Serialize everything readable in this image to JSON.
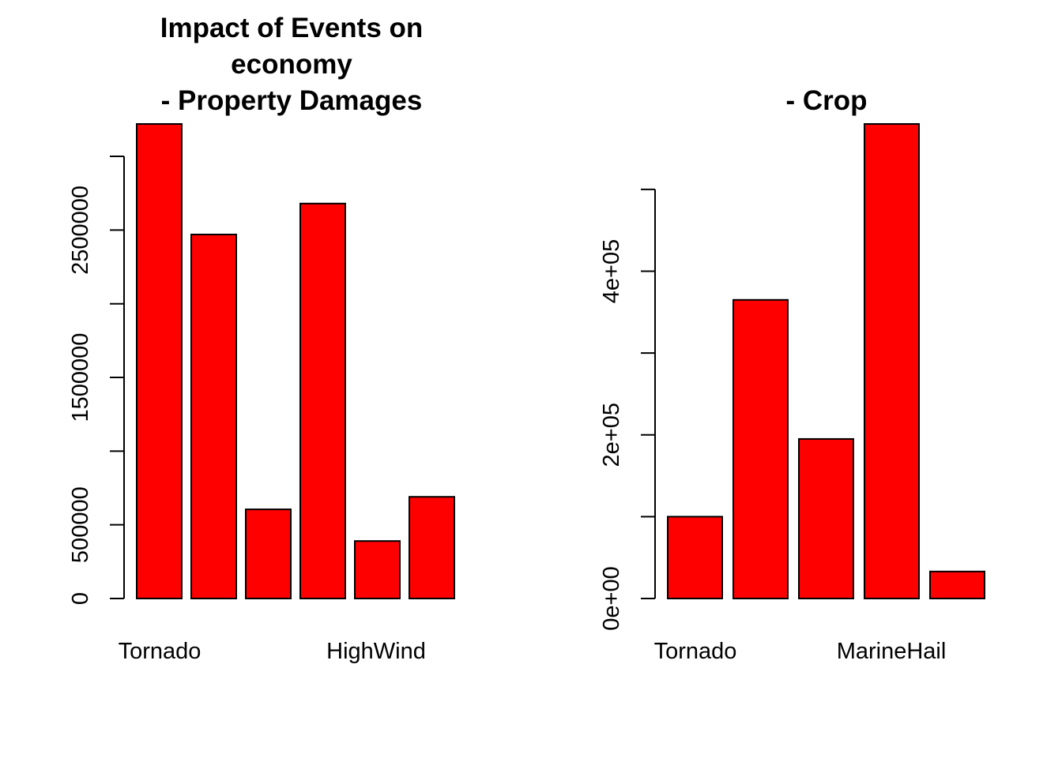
{
  "chart_data": [
    {
      "type": "bar",
      "title_lines": [
        "Impact of Events on",
        "economy",
        "- Property Damages"
      ],
      "categories": [
        "Tornado",
        "",
        "",
        "HighWind",
        "",
        ""
      ],
      "values": [
        3220000,
        2470000,
        605000,
        2680000,
        390000,
        690000
      ],
      "ylim": [
        0,
        3220000
      ],
      "yticks": [
        0,
        500000,
        1000000,
        1500000,
        2000000,
        2500000,
        3000000
      ],
      "ytick_labels": [
        "0",
        "500000",
        "",
        "1500000",
        "",
        "2500000",
        ""
      ],
      "xlabel": "",
      "ylabel": "",
      "grid": false,
      "colors": {
        "bar_fill": "#ff0000",
        "bar_stroke": "#000000"
      }
    },
    {
      "type": "bar",
      "title_lines": [
        "- Crop"
      ],
      "categories": [
        "Tornado",
        "",
        "MarineHail",
        "",
        ""
      ],
      "values": [
        100000,
        365000,
        195000,
        580000,
        33000
      ],
      "ylim": [
        0,
        580000
      ],
      "yticks": [
        0,
        100000,
        200000,
        300000,
        400000,
        500000
      ],
      "ytick_labels": [
        "0e+00",
        "",
        "2e+05",
        "",
        "4e+05",
        ""
      ],
      "xlabel": "",
      "ylabel": "",
      "grid": false,
      "colors": {
        "bar_fill": "#ff0000",
        "bar_stroke": "#000000"
      }
    }
  ]
}
